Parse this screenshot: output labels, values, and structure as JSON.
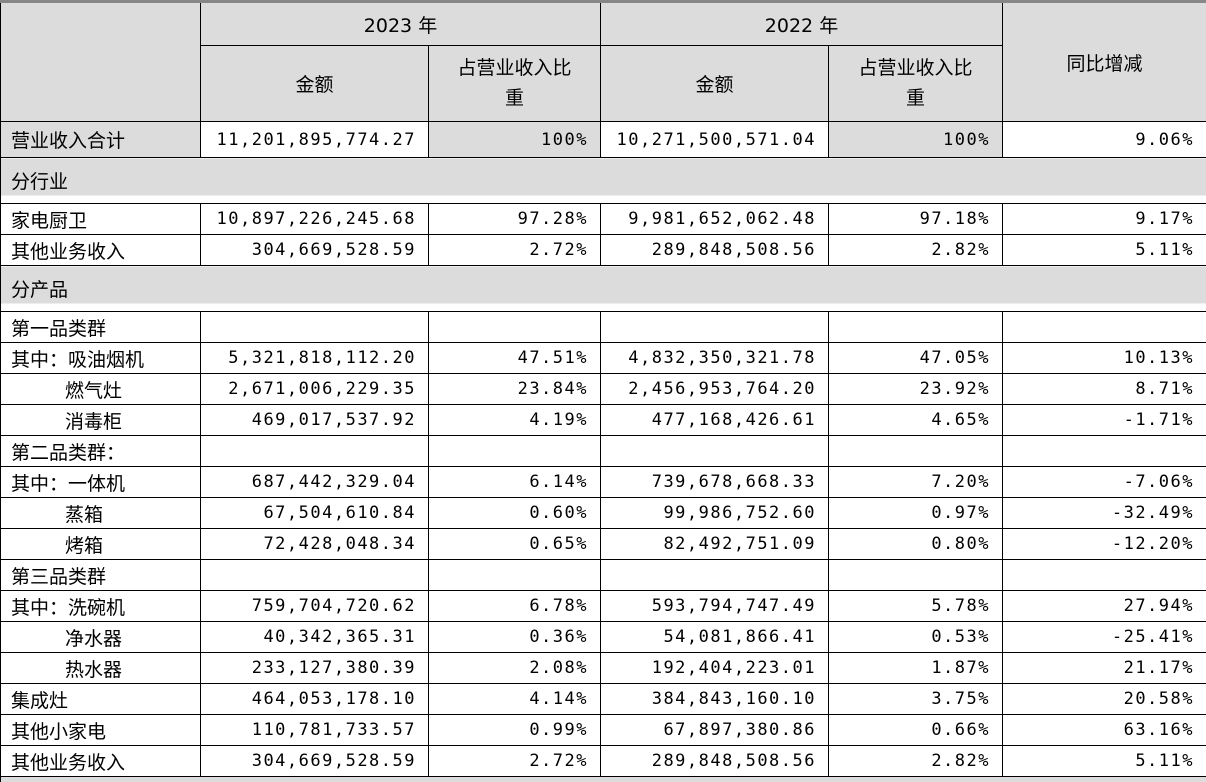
{
  "table": {
    "header": {
      "corner": "",
      "year_2023": "2023 年",
      "year_2022": "2022 年",
      "yoy": "同比增减",
      "amount": "金额",
      "pct_of_revenue": "占营业收入比重"
    },
    "rows": [
      {
        "type": "total",
        "level": 0,
        "label": "营业收入合计",
        "a23": "11,201,895,774.27",
        "p23": "100%",
        "a22": "10,271,500,571.04",
        "p22": "100%",
        "yoy": "9.06%"
      },
      {
        "type": "section",
        "label": "分行业"
      },
      {
        "type": "data",
        "level": 0,
        "label": "家电厨卫",
        "a23": "10,897,226,245.68",
        "p23": "97.28%",
        "a22": "9,981,652,062.48",
        "p22": "97.18%",
        "yoy": "9.17%"
      },
      {
        "type": "data",
        "level": 0,
        "label": "其他业务收入",
        "a23": "304,669,528.59",
        "p23": "2.72%",
        "a22": "289,848,508.56",
        "p22": "2.82%",
        "yoy": "5.11%"
      },
      {
        "type": "section",
        "label": "分产品"
      },
      {
        "type": "group",
        "level": 0,
        "label": "第一品类群",
        "a23": "",
        "p23": "",
        "a22": "",
        "p22": "",
        "yoy": ""
      },
      {
        "type": "data",
        "level": 0,
        "label": "其中：吸油烟机",
        "a23": "5,321,818,112.20",
        "p23": "47.51%",
        "a22": "4,832,350,321.78",
        "p22": "47.05%",
        "yoy": "10.13%"
      },
      {
        "type": "data",
        "level": 1,
        "label": "燃气灶",
        "a23": "2,671,006,229.35",
        "p23": "23.84%",
        "a22": "2,456,953,764.20",
        "p22": "23.92%",
        "yoy": "8.71%"
      },
      {
        "type": "data",
        "level": 1,
        "label": "消毒柜",
        "a23": "469,017,537.92",
        "p23": "4.19%",
        "a22": "477,168,426.61",
        "p22": "4.65%",
        "yoy": "-1.71%"
      },
      {
        "type": "group",
        "level": 0,
        "label": "第二品类群：",
        "a23": "",
        "p23": "",
        "a22": "",
        "p22": "",
        "yoy": ""
      },
      {
        "type": "data",
        "level": 0,
        "label": "其中：一体机",
        "a23": "687,442,329.04",
        "p23": "6.14%",
        "a22": "739,678,668.33",
        "p22": "7.20%",
        "yoy": "-7.06%"
      },
      {
        "type": "data",
        "level": 1,
        "label": "蒸箱",
        "a23": "67,504,610.84",
        "p23": "0.60%",
        "a22": "99,986,752.60",
        "p22": "0.97%",
        "yoy": "-32.49%"
      },
      {
        "type": "data",
        "level": 1,
        "label": "烤箱",
        "a23": "72,428,048.34",
        "p23": "0.65%",
        "a22": "82,492,751.09",
        "p22": "0.80%",
        "yoy": "-12.20%"
      },
      {
        "type": "group",
        "level": 0,
        "label": "第三品类群",
        "a23": "",
        "p23": "",
        "a22": "",
        "p22": "",
        "yoy": ""
      },
      {
        "type": "data",
        "level": 0,
        "label": "其中：洗碗机",
        "a23": "759,704,720.62",
        "p23": "6.78%",
        "a22": "593,794,747.49",
        "p22": "5.78%",
        "yoy": "27.94%"
      },
      {
        "type": "data",
        "level": 1,
        "label": "净水器",
        "a23": "40,342,365.31",
        "p23": "0.36%",
        "a22": "54,081,866.41",
        "p22": "0.53%",
        "yoy": "-25.41%"
      },
      {
        "type": "data",
        "level": 1,
        "label": "热水器",
        "a23": "233,127,380.39",
        "p23": "2.08%",
        "a22": "192,404,223.01",
        "p22": "1.87%",
        "yoy": "21.17%"
      },
      {
        "type": "data",
        "level": 0,
        "label": "集成灶",
        "a23": "464,053,178.10",
        "p23": "4.14%",
        "a22": "384,843,160.10",
        "p22": "3.75%",
        "yoy": "20.58%"
      },
      {
        "type": "data",
        "level": 0,
        "label": "其他小家电",
        "a23": "110,781,733.57",
        "p23": "0.99%",
        "a22": "67,897,380.86",
        "p22": "0.66%",
        "yoy": "63.16%"
      },
      {
        "type": "data",
        "level": 0,
        "label": "其他业务收入",
        "a23": "304,669,528.59",
        "p23": "2.72%",
        "a22": "289,848,508.56",
        "p22": "2.82%",
        "yoy": "5.11%"
      },
      {
        "type": "strip",
        "label": ""
      }
    ],
    "colors": {
      "shading_gray": "#dcdcdc",
      "grid_border": "#000000",
      "top_outer_border": "#878787",
      "text": "#000000"
    }
  }
}
